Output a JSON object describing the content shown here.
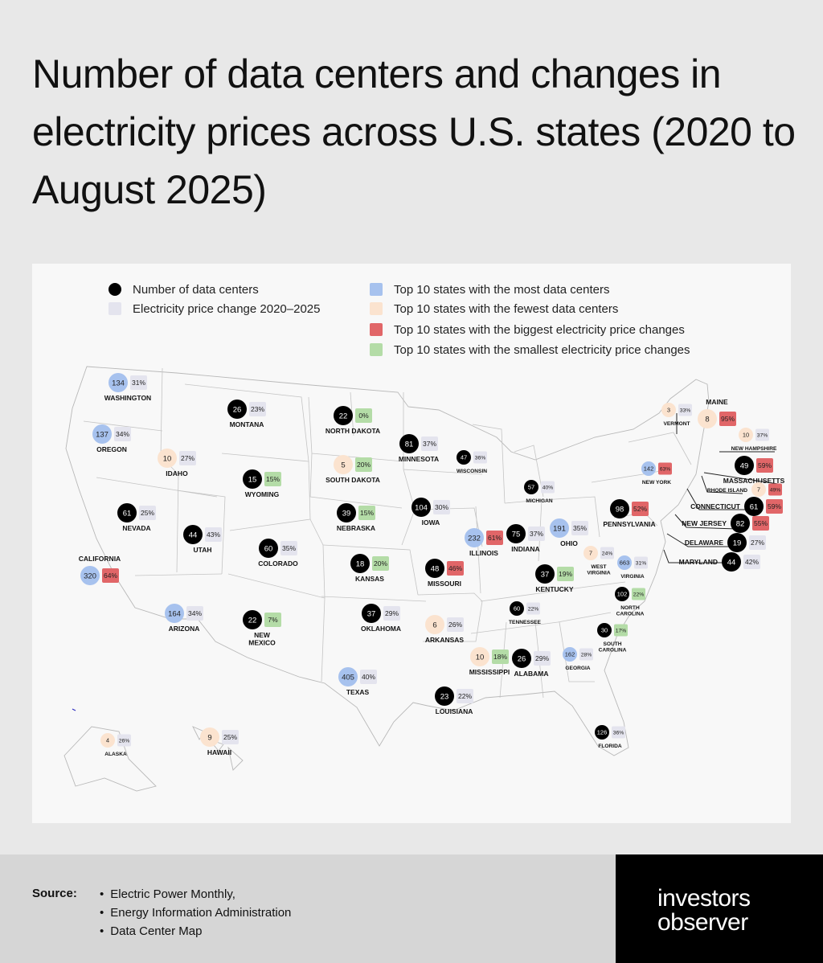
{
  "title": "Number of data centers and changes in electricity prices across U.S. states (2020 to August 2025)",
  "legend": {
    "left": [
      {
        "label": "Number of data centers",
        "color": "#000000",
        "shape": "circle"
      },
      {
        "label": "Electricity price change 2020–2025",
        "color": "#e4e4ee",
        "shape": "square"
      }
    ],
    "right": [
      {
        "label": "Top 10 states with the most data centers",
        "color": "#a7c2ee"
      },
      {
        "label": "Top 10 states with the fewest data centers",
        "color": "#fbe3cf"
      },
      {
        "label": "Top 10 states with the biggest electricity price changes",
        "color": "#e16668"
      },
      {
        "label": "Top 10 states with the smallest electricity price changes",
        "color": "#b4dca7"
      }
    ]
  },
  "colors": {
    "most": "#a7c2ee",
    "fewest": "#fbe3cf",
    "biggest": "#e16668",
    "smallest": "#b4dca7",
    "neutral_dot": "#000000",
    "neutral_box": "#e4e4ee"
  },
  "states": [
    {
      "name": "WASHINGTON",
      "count": "134",
      "change": "31%",
      "count_class": "most",
      "change_class": "neutral"
    },
    {
      "name": "OREGON",
      "count": "137",
      "change": "34%",
      "count_class": "most",
      "change_class": "neutral"
    },
    {
      "name": "CALIFORNIA",
      "count": "320",
      "change": "64%",
      "count_class": "most",
      "change_class": "biggest"
    },
    {
      "name": "NEVADA",
      "count": "61",
      "change": "25%",
      "count_class": "neutral",
      "change_class": "neutral"
    },
    {
      "name": "IDAHO",
      "count": "10",
      "change": "27%",
      "count_class": "fewest",
      "change_class": "neutral"
    },
    {
      "name": "MONTANA",
      "count": "26",
      "change": "23%",
      "count_class": "neutral",
      "change_class": "neutral"
    },
    {
      "name": "WYOMING",
      "count": "15",
      "change": "15%",
      "count_class": "neutral",
      "change_class": "smallest"
    },
    {
      "name": "UTAH",
      "count": "44",
      "change": "43%",
      "count_class": "neutral",
      "change_class": "neutral"
    },
    {
      "name": "ARIZONA",
      "count": "164",
      "change": "34%",
      "count_class": "most",
      "change_class": "neutral"
    },
    {
      "name": "COLORADO",
      "count": "60",
      "change": "35%",
      "count_class": "neutral",
      "change_class": "neutral"
    },
    {
      "name": "NEW MEXICO",
      "count": "22",
      "change": "7%",
      "count_class": "neutral",
      "change_class": "smallest"
    },
    {
      "name": "NORTH DAKOTA",
      "count": "22",
      "change": "0%",
      "count_class": "neutral",
      "change_class": "smallest"
    },
    {
      "name": "SOUTH DAKOTA",
      "count": "5",
      "change": "20%",
      "count_class": "fewest",
      "change_class": "smallest"
    },
    {
      "name": "NEBRASKA",
      "count": "39",
      "change": "15%",
      "count_class": "neutral",
      "change_class": "smallest"
    },
    {
      "name": "KANSAS",
      "count": "18",
      "change": "20%",
      "count_class": "neutral",
      "change_class": "smallest"
    },
    {
      "name": "OKLAHOMA",
      "count": "37",
      "change": "29%",
      "count_class": "neutral",
      "change_class": "neutral"
    },
    {
      "name": "TEXAS",
      "count": "405",
      "change": "40%",
      "count_class": "most",
      "change_class": "neutral"
    },
    {
      "name": "MINNESOTA",
      "count": "81",
      "change": "37%",
      "count_class": "neutral",
      "change_class": "neutral"
    },
    {
      "name": "IOWA",
      "count": "104",
      "change": "30%",
      "count_class": "neutral",
      "change_class": "neutral"
    },
    {
      "name": "MISSOURI",
      "count": "48",
      "change": "46%",
      "count_class": "neutral",
      "change_class": "biggest"
    },
    {
      "name": "ARKANSAS",
      "count": "6",
      "change": "26%",
      "count_class": "fewest",
      "change_class": "neutral"
    },
    {
      "name": "LOUISIANA",
      "count": "23",
      "change": "22%",
      "count_class": "neutral",
      "change_class": "neutral"
    },
    {
      "name": "WISCONSIN",
      "count": "47",
      "change": "36%",
      "count_class": "neutral",
      "change_class": "neutral"
    },
    {
      "name": "ILLINOIS",
      "count": "232",
      "change": "61%",
      "count_class": "most",
      "change_class": "biggest"
    },
    {
      "name": "MICHIGAN",
      "count": "57",
      "change": "40%",
      "count_class": "neutral",
      "change_class": "neutral"
    },
    {
      "name": "INDIANA",
      "count": "75",
      "change": "37%",
      "count_class": "neutral",
      "change_class": "neutral"
    },
    {
      "name": "OHIO",
      "count": "191",
      "change": "35%",
      "count_class": "most",
      "change_class": "neutral"
    },
    {
      "name": "KENTUCKY",
      "count": "37",
      "change": "19%",
      "count_class": "neutral",
      "change_class": "smallest"
    },
    {
      "name": "TENNESSEE",
      "count": "60",
      "change": "22%",
      "count_class": "neutral",
      "change_class": "neutral"
    },
    {
      "name": "MISSISSIPPI",
      "count": "10",
      "change": "18%",
      "count_class": "fewest",
      "change_class": "smallest"
    },
    {
      "name": "ALABAMA",
      "count": "26",
      "change": "29%",
      "count_class": "neutral",
      "change_class": "neutral"
    },
    {
      "name": "GEORGIA",
      "count": "162",
      "change": "28%",
      "count_class": "most",
      "change_class": "neutral"
    },
    {
      "name": "FLORIDA",
      "count": "126",
      "change": "36%",
      "count_class": "neutral",
      "change_class": "neutral"
    },
    {
      "name": "SOUTH CAROLINA",
      "count": "30",
      "change": "17%",
      "count_class": "neutral",
      "change_class": "smallest"
    },
    {
      "name": "NORTH CAROLINA",
      "count": "102",
      "change": "22%",
      "count_class": "neutral",
      "change_class": "smallest"
    },
    {
      "name": "VIRGINIA",
      "count": "663",
      "change": "31%",
      "count_class": "most",
      "change_class": "neutral"
    },
    {
      "name": "WEST VIRGINIA",
      "count": "7",
      "change": "24%",
      "count_class": "fewest",
      "change_class": "neutral"
    },
    {
      "name": "PENNSYLVANIA",
      "count": "98",
      "change": "52%",
      "count_class": "neutral",
      "change_class": "biggest"
    },
    {
      "name": "NEW YORK",
      "count": "142",
      "change": "63%",
      "count_class": "most",
      "change_class": "biggest"
    },
    {
      "name": "VERMONT",
      "count": "3",
      "change": "33%",
      "count_class": "fewest",
      "change_class": "neutral"
    },
    {
      "name": "MAINE",
      "count": "8",
      "change": "95%",
      "count_class": "fewest",
      "change_class": "biggest"
    },
    {
      "name": "NEW HAMPSHIRE",
      "count": "10",
      "change": "37%",
      "count_class": "fewest",
      "change_class": "neutral"
    },
    {
      "name": "MASSACHUSETTS",
      "count": "49",
      "change": "59%",
      "count_class": "neutral",
      "change_class": "biggest"
    },
    {
      "name": "RHODE ISLAND",
      "count": "7",
      "change": "49%",
      "count_class": "fewest",
      "change_class": "biggest"
    },
    {
      "name": "CONNECTICUT",
      "count": "61",
      "change": "59%",
      "count_class": "neutral",
      "change_class": "biggest"
    },
    {
      "name": "NEW JERSEY",
      "count": "82",
      "change": "55%",
      "count_class": "neutral",
      "change_class": "biggest"
    },
    {
      "name": "DELAWARE",
      "count": "19",
      "change": "27%",
      "count_class": "neutral",
      "change_class": "neutral"
    },
    {
      "name": "MARYLAND",
      "count": "44",
      "change": "42%",
      "count_class": "neutral",
      "change_class": "neutral"
    },
    {
      "name": "ALASKA",
      "count": "4",
      "change": "26%",
      "count_class": "fewest",
      "change_class": "neutral"
    },
    {
      "name": "HAWAII",
      "count": "9",
      "change": "25%",
      "count_class": "fewest",
      "change_class": "neutral"
    }
  ],
  "footer": {
    "source_label": "Source:",
    "sources": [
      "Electric Power Monthly,",
      "Energy Information Administration",
      "Data Center Map"
    ]
  },
  "brand": {
    "line1": "investors",
    "line2": "observer"
  }
}
